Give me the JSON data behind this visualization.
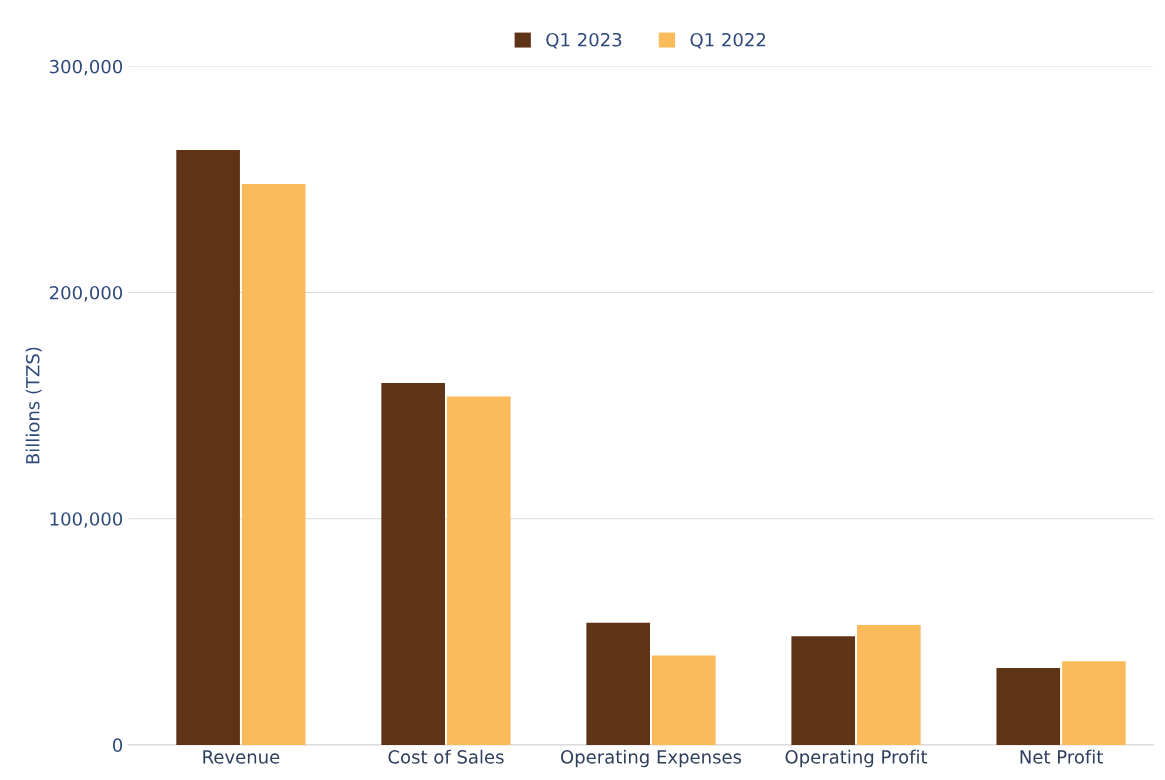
{
  "chart_data": {
    "type": "bar",
    "ylabel": "Billions (TZS)",
    "categories": [
      "Revenue",
      "Cost of Sales",
      "Operating Expenses",
      "Operating Profit",
      "Net Profit"
    ],
    "series": [
      {
        "name": "Q1 2023",
        "color": "#5e3316",
        "values": [
          263000,
          160000,
          54000,
          48000,
          34000
        ]
      },
      {
        "name": "Q1 2022",
        "color": "#fbbb5a",
        "values": [
          248000,
          154000,
          39500,
          53000,
          37000
        ]
      }
    ],
    "ylim": [
      0,
      300000
    ],
    "yticks": [
      {
        "value": 0,
        "label": "0"
      },
      {
        "value": 100000,
        "label": "100,000"
      },
      {
        "value": 200000,
        "label": "200,000"
      },
      {
        "value": 300000,
        "label": "300,000"
      }
    ],
    "grid": "y",
    "legend": "top"
  }
}
